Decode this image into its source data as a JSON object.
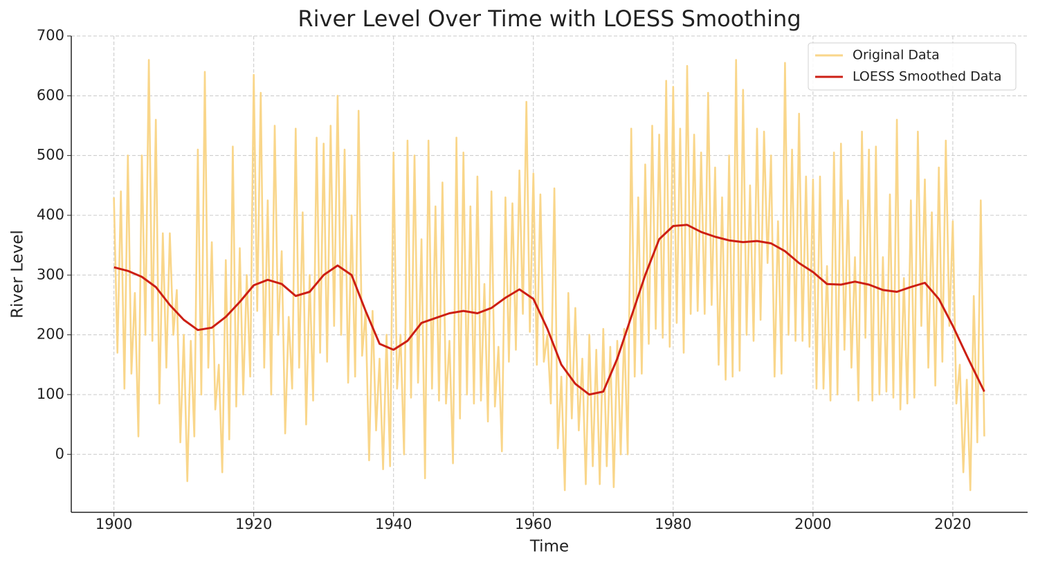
{
  "chart_data": {
    "type": "line",
    "title": "River Level Over Time with LOESS Smoothing",
    "x_label": "Time",
    "y_label": "River Level",
    "xlim": [
      1893.9,
      2030.7
    ],
    "ylim": [
      -97,
      700
    ],
    "xticks": [
      1900,
      1920,
      1940,
      1960,
      1980,
      2000,
      2020
    ],
    "yticks": [
      0,
      100,
      200,
      300,
      400,
      500,
      600,
      700
    ],
    "grid": true,
    "legend": "upper right",
    "series": [
      {
        "name": "Original Data",
        "color": "#f9d68a",
        "x": [
          1900,
          1900.5,
          1901,
          1901.5,
          1902,
          1902.5,
          1903,
          1903.5,
          1904,
          1904.5,
          1905,
          1905.5,
          1906,
          1906.5,
          1907,
          1907.5,
          1908,
          1908.5,
          1909,
          1909.5,
          1910,
          1910.5,
          1911,
          1911.5,
          1912,
          1912.5,
          1913,
          1913.5,
          1914,
          1914.5,
          1915,
          1915.5,
          1916,
          1916.5,
          1917,
          1917.5,
          1918,
          1918.5,
          1919,
          1919.5,
          1920,
          1920.5,
          1921,
          1921.5,
          1922,
          1922.5,
          1923,
          1923.5,
          1924,
          1924.5,
          1925,
          1925.5,
          1926,
          1926.5,
          1927,
          1927.5,
          1928,
          1928.5,
          1929,
          1929.5,
          1930,
          1930.5,
          1931,
          1931.5,
          1932,
          1932.5,
          1933,
          1933.5,
          1934,
          1934.5,
          1935,
          1935.5,
          1936,
          1936.5,
          1937,
          1937.5,
          1938,
          1938.5,
          1939,
          1939.5,
          1940,
          1940.5,
          1941,
          1941.5,
          1942,
          1942.5,
          1943,
          1943.5,
          1944,
          1944.5,
          1945,
          1945.5,
          1946,
          1946.5,
          1947,
          1947.5,
          1948,
          1948.5,
          1949,
          1949.5,
          1950,
          1950.5,
          1951,
          1951.5,
          1952,
          1952.5,
          1953,
          1953.5,
          1954,
          1954.5,
          1955,
          1955.5,
          1956,
          1956.5,
          1957,
          1957.5,
          1958,
          1958.5,
          1959,
          1959.5,
          1960,
          1960.5,
          1961,
          1961.5,
          1962,
          1962.5,
          1963,
          1963.5,
          1964,
          1964.5,
          1965,
          1965.5,
          1966,
          1966.5,
          1967,
          1967.5,
          1968,
          1968.5,
          1969,
          1969.5,
          1970,
          1970.5,
          1971,
          1971.5,
          1972,
          1972.5,
          1973,
          1973.5,
          1974,
          1974.5,
          1975,
          1975.5,
          1976,
          1976.5,
          1977,
          1977.5,
          1978,
          1978.5,
          1979,
          1979.5,
          1980,
          1980.5,
          1981,
          1981.5,
          1982,
          1982.5,
          1983,
          1983.5,
          1984,
          1984.5,
          1985,
          1985.5,
          1986,
          1986.5,
          1987,
          1987.5,
          1988,
          1988.5,
          1989,
          1989.5,
          1990,
          1990.5,
          1991,
          1991.5,
          1992,
          1992.5,
          1993,
          1993.5,
          1994,
          1994.5,
          1995,
          1995.5,
          1996,
          1996.5,
          1997,
          1997.5,
          1998,
          1998.5,
          1999,
          1999.5,
          2000,
          2000.5,
          2001,
          2001.5,
          2002,
          2002.5,
          2003,
          2003.5,
          2004,
          2004.5,
          2005,
          2005.5,
          2006,
          2006.5,
          2007,
          2007.5,
          2008,
          2008.5,
          2009,
          2009.5,
          2010,
          2010.5,
          2011,
          2011.5,
          2012,
          2012.5,
          2013,
          2013.5,
          2014,
          2014.5,
          2015,
          2015.5,
          2016,
          2016.5,
          2017,
          2017.5,
          2018,
          2018.5,
          2019,
          2019.5,
          2020,
          2020.5,
          2021,
          2021.5,
          2022,
          2022.5,
          2023,
          2023.5,
          2024,
          2024.5
        ],
        "values": [
          430,
          170,
          440,
          110,
          500,
          135,
          270,
          30,
          500,
          200,
          660,
          190,
          560,
          85,
          370,
          145,
          370,
          200,
          275,
          20,
          200,
          -45,
          190,
          30,
          510,
          100,
          640,
          145,
          355,
          75,
          150,
          -30,
          325,
          25,
          515,
          80,
          345,
          100,
          300,
          130,
          635,
          240,
          605,
          145,
          425,
          100,
          550,
          200,
          340,
          35,
          230,
          110,
          545,
          145,
          405,
          50,
          300,
          90,
          530,
          170,
          520,
          155,
          550,
          215,
          600,
          200,
          510,
          120,
          400,
          130,
          575,
          165,
          240,
          -10,
          240,
          40,
          160,
          -25,
          200,
          -20,
          505,
          110,
          200,
          0,
          525,
          95,
          500,
          120,
          360,
          -40,
          525,
          110,
          415,
          90,
          455,
          85,
          190,
          -15,
          530,
          60,
          505,
          100,
          415,
          85,
          465,
          90,
          285,
          55,
          440,
          80,
          180,
          5,
          430,
          155,
          420,
          175,
          475,
          235,
          590,
          205,
          470,
          150,
          435,
          155,
          200,
          85,
          445,
          10,
          130,
          -60,
          270,
          60,
          245,
          40,
          160,
          -50,
          200,
          -20,
          175,
          -50,
          210,
          -20,
          180,
          -55,
          190,
          0,
          210,
          0,
          545,
          130,
          430,
          135,
          485,
          185,
          550,
          210,
          535,
          195,
          625,
          180,
          615,
          220,
          545,
          170,
          650,
          235,
          535,
          240,
          505,
          235,
          605,
          250,
          480,
          150,
          430,
          125,
          500,
          130,
          660,
          140,
          610,
          200,
          450,
          190,
          545,
          225,
          540,
          320,
          500,
          130,
          390,
          135,
          655,
          200,
          510,
          190,
          570,
          190,
          465,
          180,
          460,
          110,
          465,
          110,
          315,
          90,
          505,
          100,
          520,
          175,
          425,
          145,
          330,
          90,
          540,
          195,
          510,
          90,
          515,
          100,
          330,
          105,
          435,
          95,
          560,
          75,
          295,
          85,
          425,
          95,
          540,
          215,
          460,
          145,
          405,
          115,
          480,
          155,
          525,
          215,
          390,
          85,
          150,
          -30,
          125,
          -60,
          265,
          20,
          425,
          30
        ]
      },
      {
        "name": "LOESS Smoothed Data",
        "color": "#cc1f14",
        "x": [
          1900,
          1902,
          1904,
          1906,
          1908,
          1910,
          1912,
          1914,
          1916,
          1918,
          1920,
          1922,
          1924,
          1926,
          1928,
          1930,
          1932,
          1934,
          1936,
          1938,
          1940,
          1942,
          1944,
          1946,
          1948,
          1950,
          1952,
          1954,
          1956,
          1958,
          1960,
          1962,
          1964,
          1966,
          1968,
          1970,
          1972,
          1974,
          1976,
          1978,
          1980,
          1982,
          1984,
          1986,
          1988,
          1990,
          1992,
          1994,
          1996,
          1998,
          2000,
          2002,
          2004,
          2006,
          2008,
          2010,
          2012,
          2014,
          2016,
          2018,
          2020,
          2022,
          2024.5
        ],
        "values": [
          313,
          307,
          297,
          280,
          250,
          225,
          208,
          212,
          230,
          255,
          283,
          292,
          285,
          265,
          272,
          300,
          316,
          300,
          240,
          185,
          175,
          190,
          220,
          228,
          236,
          240,
          236,
          245,
          262,
          276,
          260,
          210,
          150,
          118,
          100,
          105,
          160,
          230,
          300,
          360,
          382,
          384,
          372,
          364,
          358,
          355,
          357,
          353,
          340,
          320,
          305,
          285,
          284,
          289,
          284,
          275,
          272,
          280,
          287,
          260,
          215,
          165,
          105
        ]
      }
    ]
  }
}
